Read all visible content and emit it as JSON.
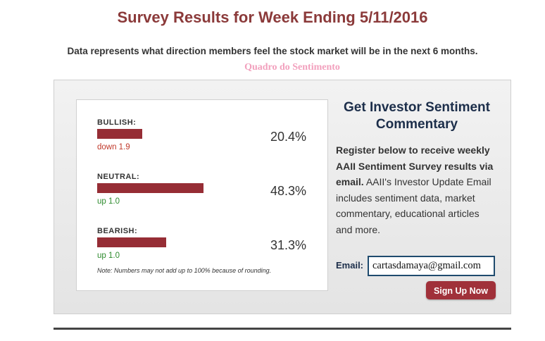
{
  "header": {
    "title": "Survey Results for Week Ending 5/11/2016",
    "subtitle": "Data represents what direction members feel the stock market will be in the next 6 months.",
    "caption": "Quadro do Sentimento"
  },
  "chart_data": {
    "type": "bar",
    "categories": [
      "BULLISH:",
      "NEUTRAL:",
      "BEARISH:"
    ],
    "values": [
      20.4,
      48.3,
      31.3
    ],
    "value_labels": [
      "20.4%",
      "48.3%",
      "31.3%"
    ],
    "changes": [
      "down 1.9",
      "up 1.0",
      "up 1.0"
    ],
    "change_directions": [
      "down",
      "up",
      "up"
    ],
    "bar_color": "#962d35",
    "up_color": "#2e8b2e",
    "down_color": "#c0392b",
    "note": "Note: Numbers may not add up to 100% because of rounding."
  },
  "sidebar": {
    "heading": "Get Investor Sentiment Commentary",
    "body_bold": "Register below to receive weekly AAII Sentiment Survey results via email.",
    "body_rest": " AAII's Investor Update Email includes sentiment data, market commentary, educational articles and more.",
    "email_label": "Email:",
    "email_value": "cartasdamaya@gmail.com",
    "signup_label": "Sign Up Now"
  }
}
